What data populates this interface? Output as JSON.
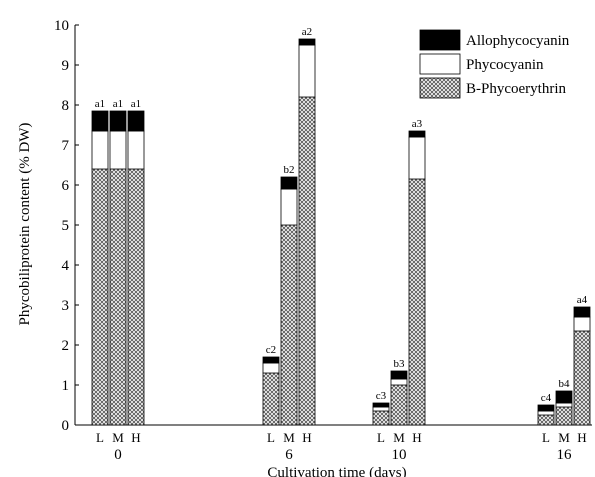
{
  "chart_data": {
    "type": "bar",
    "stacked": true,
    "title": "",
    "xlabel": "Cultivation time (days)",
    "ylabel": "Phycobiliprotein content (% DW)",
    "ylim": [
      0,
      10
    ],
    "yticks": [
      "0",
      "1",
      "2",
      "3",
      "4",
      "5",
      "6",
      "7",
      "8",
      "9",
      "10"
    ],
    "grid": false,
    "legend_position": "top-right",
    "groups": [
      "0",
      "6",
      "10",
      "16"
    ],
    "treatments": [
      "L",
      "M",
      "H"
    ],
    "series": [
      {
        "name": "B-Phycoerythrin",
        "pattern": "crosshatch",
        "values": [
          [
            6.4,
            6.4,
            6.4
          ],
          [
            1.3,
            5.0,
            8.2
          ],
          [
            0.35,
            1.0,
            6.15
          ],
          [
            0.25,
            0.45,
            2.35
          ]
        ]
      },
      {
        "name": "Phycocyanin",
        "pattern": "white",
        "values": [
          [
            0.95,
            0.95,
            0.95
          ],
          [
            0.25,
            0.9,
            1.3
          ],
          [
            0.1,
            0.15,
            1.05
          ],
          [
            0.1,
            0.1,
            0.35
          ]
        ]
      },
      {
        "name": "Allophycocyanin",
        "pattern": "black",
        "values": [
          [
            0.5,
            0.5,
            0.5
          ],
          [
            0.15,
            0.3,
            0.15
          ],
          [
            0.1,
            0.2,
            0.15
          ],
          [
            0.15,
            0.3,
            0.25
          ]
        ]
      }
    ],
    "annotations": [
      [
        "a1",
        "a1",
        "a1"
      ],
      [
        "c2",
        "b2",
        "a2"
      ],
      [
        "c3",
        "b3",
        "a3"
      ],
      [
        "c4",
        "b4",
        "a4"
      ]
    ],
    "colors": {
      "black": "#000000",
      "white": "#ffffff",
      "hatch": "#555555"
    }
  }
}
